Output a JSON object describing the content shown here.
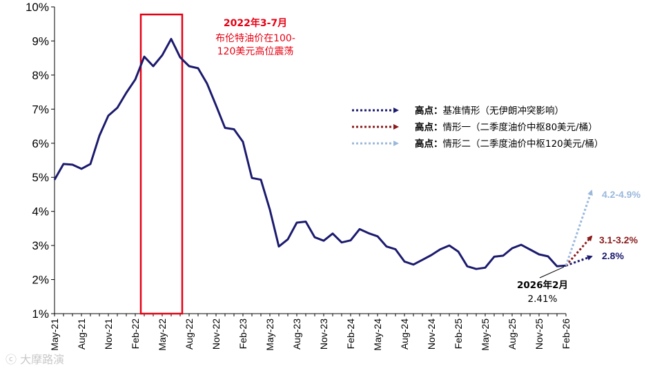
{
  "chart_data": {
    "type": "line",
    "ylim": [
      1,
      10
    ],
    "y_ticks": [
      "1%",
      "2%",
      "3%",
      "4%",
      "5%",
      "6%",
      "7%",
      "8%",
      "9%",
      "10%"
    ],
    "x_tick_labels": [
      "May-21",
      "Aug-21",
      "Nov-21",
      "Feb-22",
      "May-22",
      "Aug-22",
      "Nov-22",
      "Feb-23",
      "May-23",
      "Aug-23",
      "Nov-23",
      "Feb-24",
      "May-24",
      "Aug-24",
      "Nov-24",
      "Feb-25",
      "May-25",
      "Aug-25",
      "Nov-25",
      "Feb-26"
    ],
    "series": [
      {
        "color": "#1b1a6e",
        "x": [
          "2021-05",
          "2021-06",
          "2021-07",
          "2021-08",
          "2021-09",
          "2021-10",
          "2021-11",
          "2021-12",
          "2022-01",
          "2022-02",
          "2022-03",
          "2022-04",
          "2022-05",
          "2022-06",
          "2022-07",
          "2022-08",
          "2022-09",
          "2022-10",
          "2022-11",
          "2022-12",
          "2023-01",
          "2023-02",
          "2023-03",
          "2023-04",
          "2023-05",
          "2023-06",
          "2023-07",
          "2023-08",
          "2023-09",
          "2023-10",
          "2023-11",
          "2023-12",
          "2024-01",
          "2024-02",
          "2024-03",
          "2024-04",
          "2024-05",
          "2024-06",
          "2024-07",
          "2024-08",
          "2024-09",
          "2024-10",
          "2024-11",
          "2024-12",
          "2025-01",
          "2025-02",
          "2025-03",
          "2025-04",
          "2025-05",
          "2025-06",
          "2025-07",
          "2025-08",
          "2025-09",
          "2025-10",
          "2025-11",
          "2025-12",
          "2026-01",
          "2026-02"
        ],
        "y": [
          4.93,
          5.39,
          5.37,
          5.25,
          5.39,
          6.22,
          6.81,
          7.04,
          7.48,
          7.87,
          8.54,
          8.26,
          8.58,
          9.06,
          8.52,
          8.26,
          8.2,
          7.75,
          7.11,
          6.45,
          6.41,
          6.04,
          4.98,
          4.93,
          4.05,
          2.97,
          3.18,
          3.67,
          3.7,
          3.24,
          3.14,
          3.35,
          3.09,
          3.15,
          3.48,
          3.36,
          3.27,
          2.97,
          2.89,
          2.53,
          2.44,
          2.58,
          2.72,
          2.89,
          3.0,
          2.82,
          2.39,
          2.31,
          2.35,
          2.67,
          2.7,
          2.92,
          3.02,
          2.88,
          2.74,
          2.68,
          2.39,
          2.41
        ]
      }
    ],
    "scenarios": [
      {
        "legend_bold": "高点：",
        "legend_text": "基准情形（无伊朗冲突影响）",
        "label": "2.8%",
        "value": 2.8,
        "color": "#1b1a6e"
      },
      {
        "legend_bold": "高点：",
        "legend_text": "情形一（二季度油价中枢80美元/桶）",
        "label": "3.1-3.2%",
        "value": 3.2,
        "color": "#8b1a1a"
      },
      {
        "legend_bold": "高点：",
        "legend_text": "情形二（二季度油价中枢120美元/桶）",
        "label": "4.2-4.9%",
        "value": 4.55,
        "color": "#9ab8dc"
      }
    ],
    "highlight_box": {
      "x_start": "2022-02",
      "x_end": "2022-07",
      "title": "2022年3-7月",
      "text_lines": [
        "布伦特油价在100-",
        "120美元高位震荡"
      ],
      "color": "#e60012"
    },
    "callout": {
      "x": "2026-02",
      "y": 2.41,
      "title": "2026年2月",
      "value": "2.41%"
    },
    "grid": false,
    "legend_position": "right"
  },
  "watermark": "大摩路演"
}
